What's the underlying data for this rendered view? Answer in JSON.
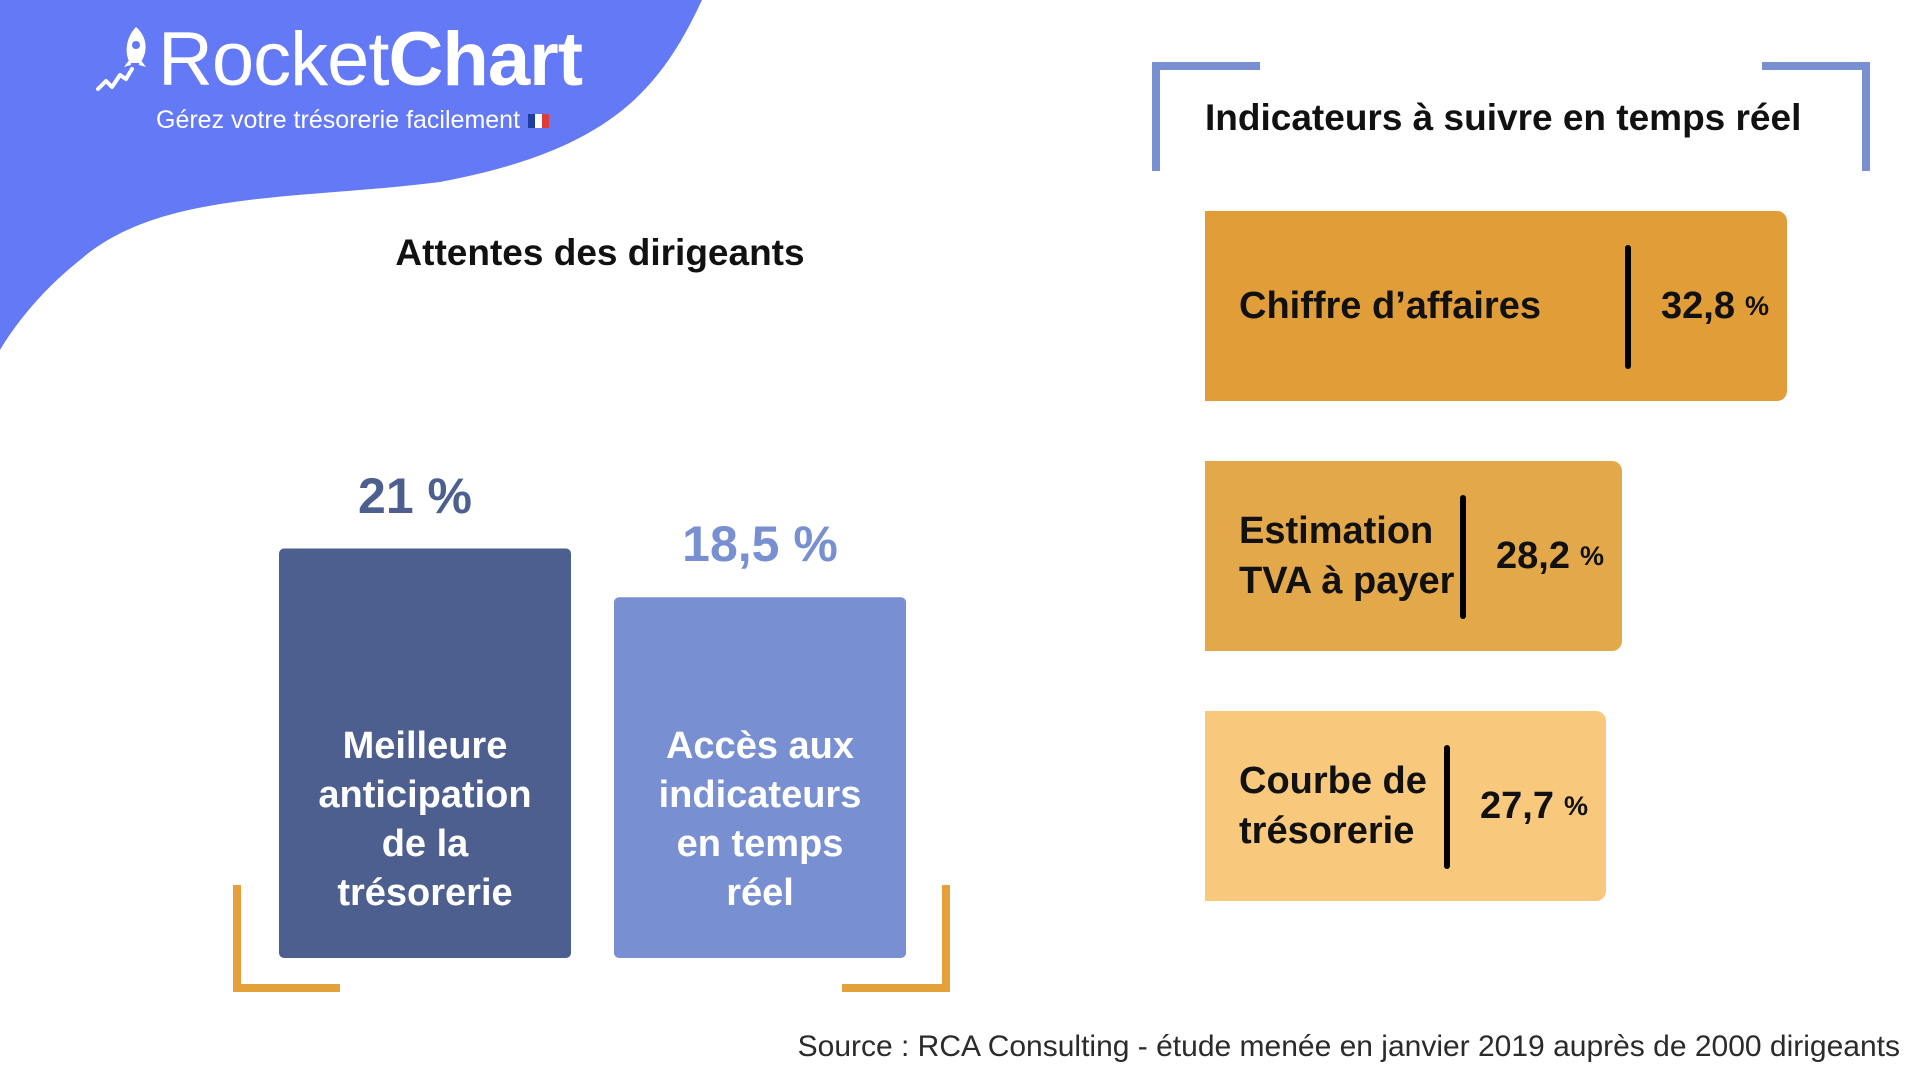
{
  "brand": {
    "name_part1": "Rocket",
    "name_part2": "Chart",
    "tagline": "Gérez votre trésorerie facilement",
    "logo_icon": "rocket-icon",
    "flag_icon": "flag-fr-icon"
  },
  "colors": {
    "header_blob": "#6479f5",
    "bar_dark": "#4d5f8f",
    "bar_light": "#7890d2",
    "bracket_orange": "#e2a239",
    "bracket_blue": "#7890d2",
    "box_1": "#e09d38",
    "box_2": "#e3a84a",
    "box_3": "#f8c87c"
  },
  "chart_data": [
    {
      "type": "bar",
      "title": "Attentes des dirigeants",
      "categories": [
        "Meilleure anticipation de la trésorerie",
        "Accès aux indicateurs en temps réel"
      ],
      "values": [
        21,
        18.5
      ],
      "value_labels": [
        "21 %",
        "18,5 %"
      ],
      "unit": "%",
      "grid": false
    },
    {
      "type": "bar",
      "orientation": "horizontal",
      "title": "Indicateurs à suivre en temps réel",
      "categories": [
        "Chiffre d’affaires",
        "Estimation TVA à payer",
        "Courbe de trésorerie"
      ],
      "values": [
        32.8,
        28.2,
        27.7
      ],
      "value_labels": [
        "32,8",
        "28,2",
        "27,7"
      ],
      "unit": "%",
      "grid": false
    }
  ],
  "bar_lines": [
    [
      "Meilleure",
      "anticipation",
      "de la",
      "trésorerie"
    ],
    [
      "Accès aux",
      "indicateurs",
      "en temps",
      "réel"
    ]
  ],
  "indicator_lines": [
    [
      "Chiffre d’affaires"
    ],
    [
      "Estimation",
      "TVA à payer"
    ],
    [
      "Courbe de",
      "trésorerie"
    ]
  ],
  "source": "Source : RCA Consulting - étude menée en janvier 2019 auprès de 2000 dirigeants"
}
